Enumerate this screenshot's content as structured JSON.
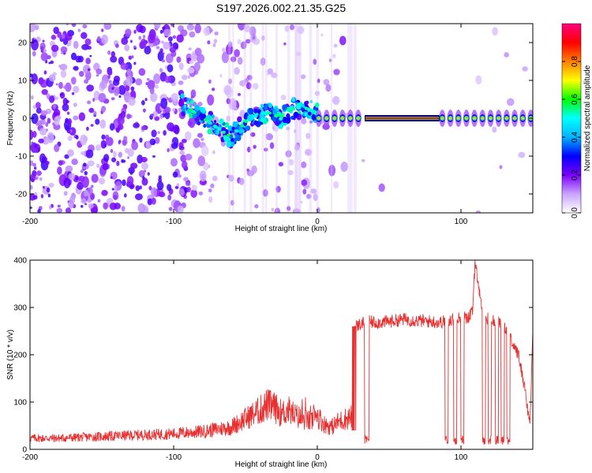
{
  "figure": {
    "title": "S197.2026.002.21.35.G25"
  },
  "chart_data": [
    {
      "type": "heatmap",
      "title": "S197.2026.002.21.35.G25",
      "xlabel": "Height of straight line (km)",
      "ylabel": "Frequency (Hz)",
      "xlim": [
        -200,
        150
      ],
      "ylim": [
        -25,
        25
      ],
      "xticks": [
        -200,
        -100,
        0,
        100
      ],
      "yticks": [
        -20,
        -10,
        0,
        10,
        20
      ],
      "colorbar": {
        "label": "Normalized spectral amplitude",
        "range": [
          0.0,
          1.0
        ],
        "ticks": [
          0.0,
          0.2,
          0.4,
          0.6,
          0.8
        ],
        "colormap": [
          "#ffffff",
          "#7b00ff",
          "#0000ff",
          "#00ffff",
          "#00ff00",
          "#ffff00",
          "#ff8000",
          "#ff0000",
          "#ff0080"
        ]
      },
      "features": {
        "carrier_frequency_hz": 0,
        "noise_region_km": [
          -200,
          -90
        ],
        "transition_region_km": [
          -90,
          0
        ],
        "clean_tone_km": [
          33,
          85
        ],
        "pulsed_tone_km": [
          0,
          33
        ],
        "pulsed_tone_km_2": [
          85,
          150
        ]
      }
    },
    {
      "type": "line",
      "xlabel": "Height of straight line (km)",
      "ylabel": "SNR (10 * v/v)",
      "xlim": [
        -200,
        150
      ],
      "ylim": [
        0,
        400
      ],
      "xticks": [
        -200,
        -100,
        0,
        100
      ],
      "yticks": [
        0,
        100,
        200,
        300,
        400
      ],
      "color": "#e83030",
      "series": [
        {
          "name": "SNR",
          "x": [
            -200,
            -180,
            -160,
            -140,
            -120,
            -100,
            -80,
            -60,
            -50,
            -40,
            -35,
            -30,
            -25,
            -20,
            -15,
            -10,
            -5,
            0,
            5,
            10,
            15,
            20,
            25,
            27,
            30,
            35,
            40,
            50,
            60,
            70,
            80,
            85,
            90,
            95,
            100,
            105,
            108,
            110,
            115,
            120,
            125,
            130,
            135,
            140,
            145,
            148,
            150
          ],
          "values": [
            20,
            20,
            22,
            24,
            26,
            28,
            32,
            40,
            55,
            70,
            80,
            75,
            65,
            70,
            60,
            55,
            50,
            60,
            45,
            40,
            50,
            55,
            60,
            260,
            265,
            270,
            268,
            270,
            275,
            272,
            270,
            268,
            272,
            275,
            278,
            280,
            290,
            400,
            280,
            275,
            270,
            265,
            230,
            200,
            120,
            50,
            250
          ]
        }
      ]
    }
  ]
}
